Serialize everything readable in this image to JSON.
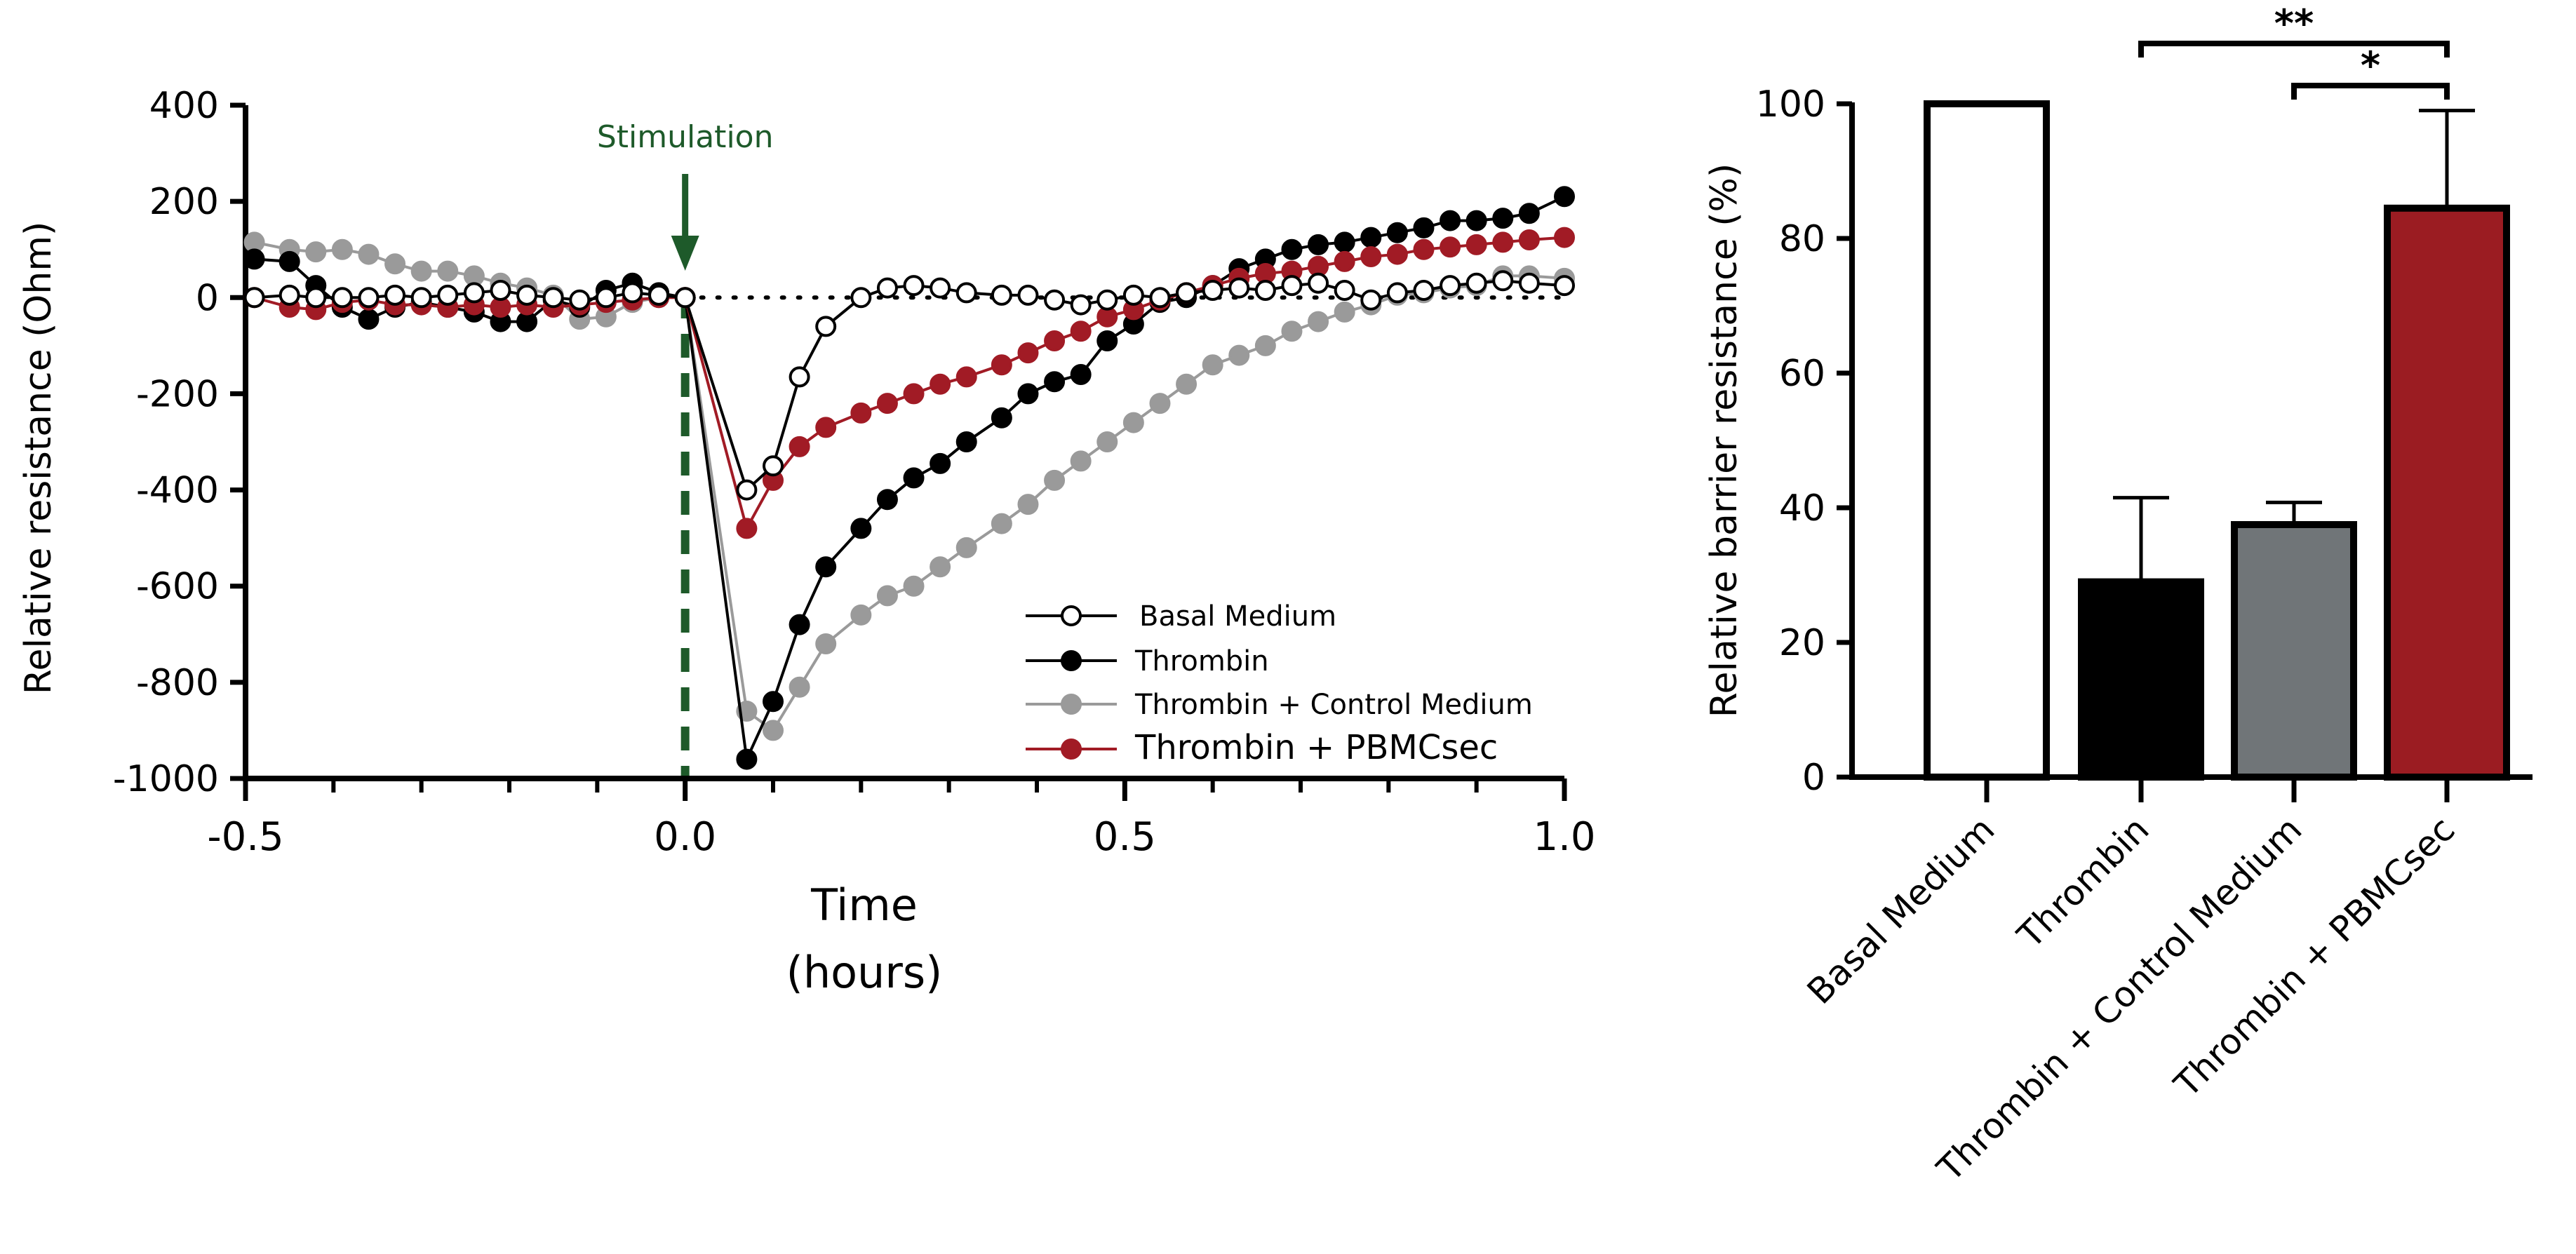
{
  "colors": {
    "basal": "#000000",
    "thrombin": "#000000",
    "control": "#9a9a9a",
    "pbmc": "#a11b25",
    "stim": "#1e5a2a",
    "bar_control": "#707578",
    "bar_pbmc": "#9b1c22"
  },
  "chart_data": [
    {
      "type": "line",
      "xlabel": "Time",
      "xlabel_unit": "(hours)",
      "ylabel": "Relative resistance (Ohm)",
      "xlim": [
        -0.5,
        1.0
      ],
      "ylim": [
        -1000,
        400
      ],
      "xticks": [
        -0.5,
        0.0,
        0.5,
        1.0
      ],
      "xtick_labels": [
        "-0.5",
        "0.0",
        "0.5",
        "1.0"
      ],
      "yticks": [
        400,
        200,
        0,
        -200,
        -400,
        -600,
        -800,
        -1000
      ],
      "ytick_labels": [
        "400",
        "200",
        "0",
        "-200",
        "-400",
        "-600",
        "-800",
        "-1000"
      ],
      "annotation": "Stimulation",
      "annotation_x": 0.0,
      "baseline_y": 0,
      "series": [
        {
          "name": "Basal Medium",
          "marker": "open",
          "x": [
            -0.49,
            -0.45,
            -0.42,
            -0.39,
            -0.36,
            -0.33,
            -0.3,
            -0.27,
            -0.24,
            -0.21,
            -0.18,
            -0.15,
            -0.12,
            -0.09,
            -0.06,
            -0.03,
            0.0,
            0.07,
            0.1,
            0.13,
            0.16,
            0.2,
            0.23,
            0.26,
            0.29,
            0.32,
            0.36,
            0.39,
            0.42,
            0.45,
            0.48,
            0.51,
            0.54,
            0.57,
            0.6,
            0.63,
            0.66,
            0.69,
            0.72,
            0.75,
            0.78,
            0.81,
            0.84,
            0.87,
            0.9,
            0.93,
            0.96,
            1.0
          ],
          "y": [
            0,
            5,
            0,
            0,
            0,
            5,
            0,
            5,
            10,
            15,
            5,
            0,
            -5,
            0,
            10,
            5,
            0,
            -400,
            -350,
            -165,
            -60,
            0,
            20,
            25,
            20,
            10,
            5,
            5,
            -5,
            -15,
            -5,
            5,
            0,
            10,
            15,
            20,
            15,
            25,
            30,
            15,
            -5,
            10,
            15,
            25,
            30,
            35,
            30,
            25
          ]
        },
        {
          "name": "Thrombin",
          "marker": "filled",
          "x": [
            -0.49,
            -0.45,
            -0.42,
            -0.39,
            -0.36,
            -0.33,
            -0.3,
            -0.27,
            -0.24,
            -0.21,
            -0.18,
            -0.15,
            -0.12,
            -0.09,
            -0.06,
            -0.03,
            0.0,
            0.07,
            0.1,
            0.13,
            0.16,
            0.2,
            0.23,
            0.26,
            0.29,
            0.32,
            0.36,
            0.39,
            0.42,
            0.45,
            0.48,
            0.51,
            0.54,
            0.57,
            0.6,
            0.63,
            0.66,
            0.69,
            0.72,
            0.75,
            0.78,
            0.81,
            0.84,
            0.87,
            0.9,
            0.93,
            0.96,
            1.0
          ],
          "y": [
            80,
            75,
            25,
            -20,
            -45,
            -20,
            -10,
            -20,
            -30,
            -50,
            -50,
            -5,
            -20,
            15,
            30,
            10,
            0,
            -960,
            -840,
            -680,
            -560,
            -480,
            -420,
            -375,
            -345,
            -300,
            -250,
            -200,
            -175,
            -160,
            -90,
            -55,
            -10,
            0,
            25,
            60,
            80,
            100,
            110,
            115,
            125,
            135,
            145,
            160,
            160,
            165,
            175,
            210
          ]
        },
        {
          "name": "Thrombin + Control Medium",
          "marker": "filled",
          "x": [
            -0.49,
            -0.45,
            -0.42,
            -0.39,
            -0.36,
            -0.33,
            -0.3,
            -0.27,
            -0.24,
            -0.21,
            -0.18,
            -0.15,
            -0.12,
            -0.09,
            -0.06,
            -0.03,
            0.0,
            0.07,
            0.1,
            0.13,
            0.16,
            0.2,
            0.23,
            0.26,
            0.29,
            0.32,
            0.36,
            0.39,
            0.42,
            0.45,
            0.48,
            0.51,
            0.54,
            0.57,
            0.6,
            0.63,
            0.66,
            0.69,
            0.72,
            0.75,
            0.78,
            0.81,
            0.84,
            0.87,
            0.9,
            0.93,
            0.96,
            1.0
          ],
          "y": [
            115,
            100,
            95,
            100,
            90,
            70,
            55,
            55,
            45,
            30,
            20,
            5,
            -45,
            -40,
            -10,
            0,
            0,
            -860,
            -900,
            -810,
            -720,
            -660,
            -620,
            -600,
            -560,
            -520,
            -470,
            -430,
            -380,
            -340,
            -300,
            -260,
            -220,
            -180,
            -140,
            -120,
            -100,
            -70,
            -50,
            -30,
            -15,
            5,
            10,
            20,
            25,
            45,
            45,
            40
          ]
        },
        {
          "name": "Thrombin + PBMCsec",
          "marker": "filled",
          "x": [
            -0.49,
            -0.45,
            -0.42,
            -0.39,
            -0.36,
            -0.33,
            -0.3,
            -0.27,
            -0.24,
            -0.21,
            -0.18,
            -0.15,
            -0.12,
            -0.09,
            -0.06,
            -0.03,
            0.0,
            0.07,
            0.1,
            0.13,
            0.16,
            0.2,
            0.23,
            0.26,
            0.29,
            0.32,
            0.36,
            0.39,
            0.42,
            0.45,
            0.48,
            0.51,
            0.54,
            0.57,
            0.6,
            0.63,
            0.66,
            0.69,
            0.72,
            0.75,
            0.78,
            0.81,
            0.84,
            0.87,
            0.9,
            0.93,
            0.96,
            1.0
          ],
          "y": [
            0,
            -20,
            -25,
            -10,
            -5,
            -15,
            -15,
            -20,
            -15,
            -20,
            -15,
            -20,
            -15,
            -10,
            -5,
            0,
            0,
            -480,
            -380,
            -310,
            -270,
            -240,
            -220,
            -200,
            -180,
            -165,
            -140,
            -115,
            -90,
            -70,
            -40,
            -25,
            -5,
            10,
            25,
            40,
            50,
            55,
            65,
            75,
            85,
            90,
            100,
            105,
            110,
            115,
            120,
            125
          ]
        }
      ]
    },
    {
      "type": "bar",
      "ylabel": "Relative barrier resistance (%)",
      "ylim": [
        0,
        100
      ],
      "yticks": [
        0,
        20,
        40,
        60,
        80,
        100
      ],
      "ytick_labels": [
        "0",
        "20",
        "40",
        "60",
        "80",
        "100"
      ],
      "categories": [
        "Basal Medium",
        "Thrombin",
        "Thrombin + Control Medium",
        "Thrombin + PBMCsec"
      ],
      "values": [
        100,
        29,
        37.5,
        84.5
      ],
      "errors": [
        0,
        12.5,
        3.3,
        14.5
      ],
      "significance": [
        {
          "from": 1,
          "to": 3,
          "label": "**"
        },
        {
          "from": 2,
          "to": 3,
          "label": "*"
        }
      ]
    }
  ]
}
